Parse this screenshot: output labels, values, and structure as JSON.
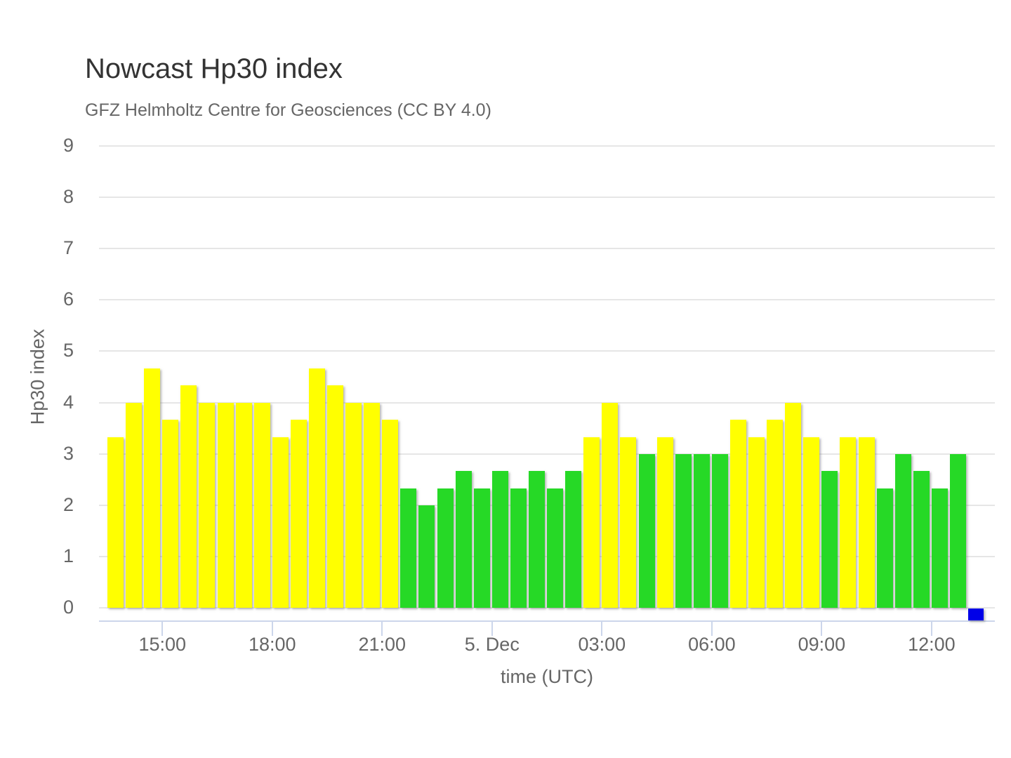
{
  "chart_data": {
    "type": "bar",
    "title": "Nowcast Hp30 index",
    "subtitle": "GFZ Helmholtz Centre for Geosciences (CC BY 4.0)",
    "ylabel": "Hp30 index",
    "xlabel": "time (UTC)",
    "ylim": [
      0,
      9
    ],
    "grid": "horizontal-on",
    "legend": "none",
    "yticks": [
      9,
      8,
      7,
      6,
      5,
      4,
      3,
      2,
      1,
      0
    ],
    "xticks": [
      {
        "slot": 3,
        "label": "15:00"
      },
      {
        "slot": 9,
        "label": "18:00"
      },
      {
        "slot": 15,
        "label": "21:00"
      },
      {
        "slot": 21,
        "label": "5. Dec"
      },
      {
        "slot": 27,
        "label": "03:00"
      },
      {
        "slot": 33,
        "label": "06:00"
      },
      {
        "slot": 39,
        "label": "09:00"
      },
      {
        "slot": 45,
        "label": "12:00"
      }
    ],
    "bar_interval": "30min",
    "values": [
      {
        "v": 3.33,
        "c": "yellow"
      },
      {
        "v": 4.0,
        "c": "yellow"
      },
      {
        "v": 4.67,
        "c": "yellow"
      },
      {
        "v": 3.67,
        "c": "yellow"
      },
      {
        "v": 4.33,
        "c": "yellow"
      },
      {
        "v": 4.0,
        "c": "yellow"
      },
      {
        "v": 4.0,
        "c": "yellow"
      },
      {
        "v": 4.0,
        "c": "yellow"
      },
      {
        "v": 4.0,
        "c": "yellow"
      },
      {
        "v": 3.33,
        "c": "yellow"
      },
      {
        "v": 3.67,
        "c": "yellow"
      },
      {
        "v": 4.67,
        "c": "yellow"
      },
      {
        "v": 4.33,
        "c": "yellow"
      },
      {
        "v": 4.0,
        "c": "yellow"
      },
      {
        "v": 4.0,
        "c": "yellow"
      },
      {
        "v": 3.67,
        "c": "yellow"
      },
      {
        "v": 2.33,
        "c": "green"
      },
      {
        "v": 2.0,
        "c": "green"
      },
      {
        "v": 2.33,
        "c": "green"
      },
      {
        "v": 2.67,
        "c": "green"
      },
      {
        "v": 2.33,
        "c": "green"
      },
      {
        "v": 2.67,
        "c": "green"
      },
      {
        "v": 2.33,
        "c": "green"
      },
      {
        "v": 2.67,
        "c": "green"
      },
      {
        "v": 2.33,
        "c": "green"
      },
      {
        "v": 2.67,
        "c": "green"
      },
      {
        "v": 3.33,
        "c": "yellow"
      },
      {
        "v": 4.0,
        "c": "yellow"
      },
      {
        "v": 3.33,
        "c": "yellow"
      },
      {
        "v": 3.0,
        "c": "green"
      },
      {
        "v": 3.33,
        "c": "yellow"
      },
      {
        "v": 3.0,
        "c": "green"
      },
      {
        "v": 3.0,
        "c": "green"
      },
      {
        "v": 3.0,
        "c": "green"
      },
      {
        "v": 3.67,
        "c": "yellow"
      },
      {
        "v": 3.33,
        "c": "yellow"
      },
      {
        "v": 3.67,
        "c": "yellow"
      },
      {
        "v": 4.0,
        "c": "yellow"
      },
      {
        "v": 3.33,
        "c": "yellow"
      },
      {
        "v": 2.67,
        "c": "green"
      },
      {
        "v": 3.33,
        "c": "yellow"
      },
      {
        "v": 3.33,
        "c": "yellow"
      },
      {
        "v": 2.33,
        "c": "green"
      },
      {
        "v": 3.0,
        "c": "green"
      },
      {
        "v": 2.67,
        "c": "green"
      },
      {
        "v": 2.33,
        "c": "green"
      },
      {
        "v": 3.0,
        "c": "green"
      }
    ],
    "nowcast_marker": {
      "slot": 47,
      "c": "blue"
    },
    "colors": {
      "yellow": "#ffff00",
      "green": "#26d926",
      "blue": "#0000e8",
      "grid": "#e6e6e6",
      "axis_line": "#ccd6eb",
      "title_text": "#333333",
      "axis_text": "#666666"
    }
  }
}
